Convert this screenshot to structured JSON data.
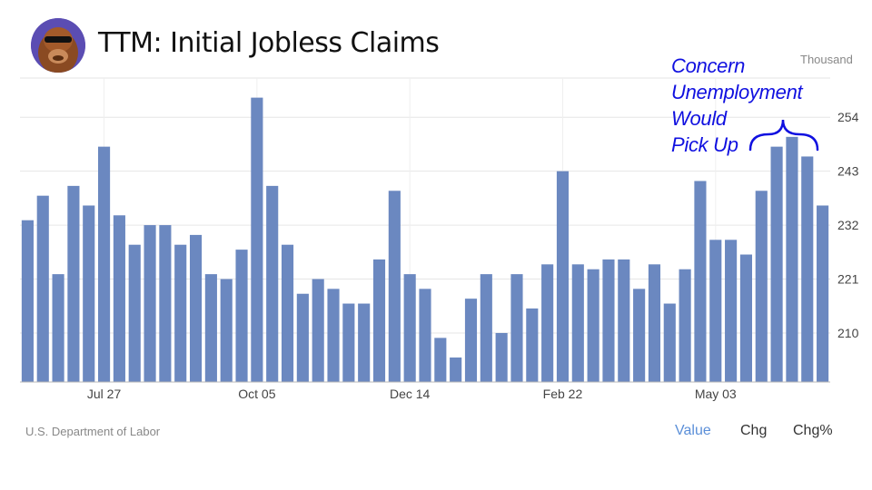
{
  "header": {
    "title": "TTM: Initial Jobless Claims",
    "unit": "Thousand"
  },
  "annotation": {
    "lines": [
      "Concern",
      "Unemployment",
      "Would",
      "Pick Up"
    ]
  },
  "footer": {
    "source": "U.S. Department of Labor",
    "tabs": [
      {
        "label": "Value",
        "active": true
      },
      {
        "label": "Chg",
        "active": false
      },
      {
        "label": "Chg%",
        "active": false
      }
    ]
  },
  "colors": {
    "bar": "#6b88c0",
    "annotation": "#1010e0",
    "grid": "#e6e6e6",
    "active_tab": "#5b8fd8"
  },
  "chart_data": {
    "type": "bar",
    "title": "TTM: Initial Jobless Claims",
    "ylabel": "Thousand",
    "ylim": [
      200,
      262
    ],
    "yticks": [
      210,
      221,
      232,
      243,
      254
    ],
    "x_tick_labels": [
      {
        "label": "Jul 27",
        "index": 5
      },
      {
        "label": "Oct 05",
        "index": 15
      },
      {
        "label": "Dec 14",
        "index": 25
      },
      {
        "label": "Feb 22",
        "index": 35
      },
      {
        "label": "May 03",
        "index": 45
      }
    ],
    "grid": true,
    "values": [
      233,
      238,
      222,
      240,
      236,
      248,
      234,
      228,
      232,
      232,
      228,
      230,
      222,
      221,
      227,
      258,
      240,
      228,
      218,
      221,
      219,
      216,
      216,
      225,
      239,
      222,
      219,
      209,
      205,
      217,
      222,
      210,
      222,
      215,
      224,
      243,
      224,
      223,
      225,
      225,
      219,
      224,
      216,
      223,
      241,
      229,
      229,
      226,
      239,
      248,
      250,
      246,
      236
    ]
  }
}
